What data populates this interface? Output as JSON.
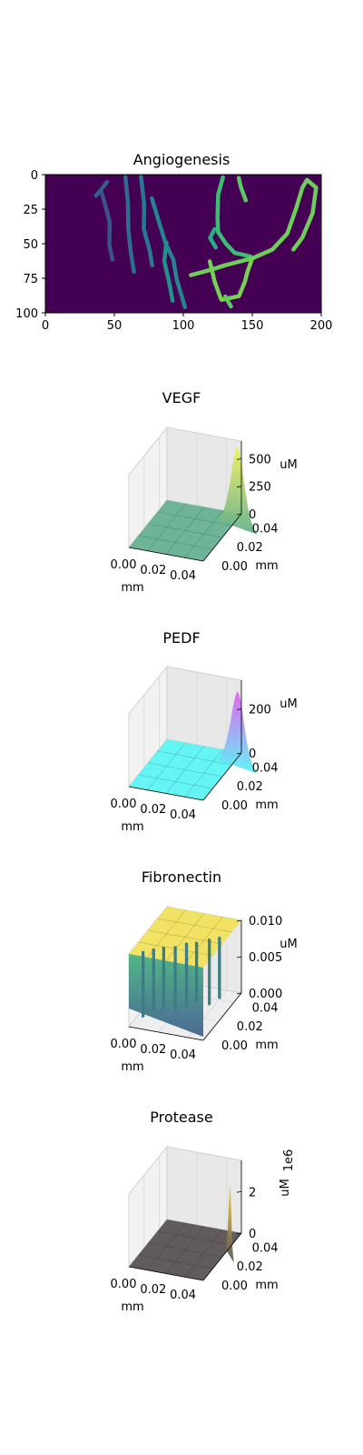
{
  "chart_data": [
    {
      "type": "heatmap",
      "title": "Angiogenesis",
      "xlim": [
        0,
        200
      ],
      "ylim": [
        100,
        0
      ],
      "xticks": [
        "0",
        "50",
        "100",
        "150",
        "200"
      ],
      "yticks": [
        "0",
        "25",
        "50",
        "75",
        "100"
      ],
      "colormap": "viridis",
      "background_color": "#440154",
      "sprouts": [
        {
          "color": "#3b528b",
          "points": [
            [
              40,
              12
            ],
            [
              44,
              22
            ],
            [
              46,
              35
            ],
            [
              47,
              50
            ],
            [
              48,
              62
            ]
          ]
        },
        {
          "color": "#35608d",
          "points": [
            [
              44,
              5
            ],
            [
              40,
              12
            ],
            [
              36,
              16
            ]
          ]
        },
        {
          "color": "#2f6c8e",
          "points": [
            [
              58,
              2
            ],
            [
              60,
              20
            ],
            [
              60,
              40
            ],
            [
              62,
              55
            ],
            [
              64,
              70
            ]
          ]
        },
        {
          "color": "#2a788e",
          "points": [
            [
              70,
              2
            ],
            [
              71,
              20
            ],
            [
              72,
              40
            ],
            [
              75,
              55
            ],
            [
              78,
              65
            ]
          ]
        },
        {
          "color": "#25848e",
          "points": [
            [
              78,
              18
            ],
            [
              82,
              35
            ],
            [
              88,
              50
            ],
            [
              92,
              62
            ],
            [
              96,
              75
            ],
            [
              98,
              88
            ],
            [
              102,
              96
            ]
          ]
        },
        {
          "color": "#21918c",
          "points": [
            [
              88,
              50
            ],
            [
              86,
              62
            ],
            [
              90,
              78
            ],
            [
              92,
              92
            ]
          ]
        },
        {
          "color": "#27ad81",
          "points": [
            [
              122,
              40
            ],
            [
              120,
              46
            ],
            [
              123,
              52
            ]
          ]
        },
        {
          "color": "#3dbc74",
          "points": [
            [
              128,
              2
            ],
            [
              126,
              15
            ],
            [
              124,
              30
            ],
            [
              126,
              42
            ],
            [
              130,
              50
            ],
            [
              138,
              56
            ],
            [
              148,
              60
            ]
          ]
        },
        {
          "color": "#5ec962",
          "points": [
            [
              140,
              2
            ],
            [
              142,
              10
            ],
            [
              145,
              18
            ]
          ]
        },
        {
          "color": "#6ece58",
          "points": [
            [
              106,
              72
            ],
            [
              118,
              70
            ],
            [
              132,
              65
            ],
            [
              150,
              60
            ],
            [
              165,
              55
            ],
            [
              175,
              42
            ],
            [
              182,
              25
            ],
            [
              186,
              10
            ],
            [
              190,
              3
            ],
            [
              196,
              10
            ],
            [
              194,
              28
            ],
            [
              186,
              45
            ],
            [
              180,
              55
            ]
          ]
        },
        {
          "color": "#73d056",
          "points": [
            [
              120,
              62
            ],
            [
              122,
              78
            ],
            [
              128,
              90
            ]
          ]
        },
        {
          "color": "#7ad151",
          "points": [
            [
              128,
              90
            ],
            [
              140,
              88
            ],
            [
              145,
              78
            ],
            [
              146,
              70
            ],
            [
              150,
              62
            ]
          ]
        },
        {
          "color": "#5ec962",
          "points": [
            [
              130,
              88
            ],
            [
              135,
              95
            ]
          ]
        }
      ]
    },
    {
      "type": "surface",
      "title": "VEGF",
      "xticks": [
        "0.00",
        "0.02",
        "0.04"
      ],
      "yticks": [
        "0.00",
        "0.02",
        "0.04"
      ],
      "zticks": [
        "0",
        "250",
        "500"
      ],
      "xlabel": "mm",
      "ylabel": "mm",
      "zlabel": "uM",
      "zlim": [
        0,
        660
      ],
      "base_level": 0,
      "peak": {
        "value": 650,
        "x": 0.05,
        "y": 0.045
      },
      "base_color": "#5fae8d",
      "peak_color": "#f0f05a"
    },
    {
      "type": "surface",
      "title": "PEDF",
      "xticks": [
        "0.00",
        "0.02",
        "0.04"
      ],
      "yticks": [
        "0.00",
        "0.02",
        "0.04"
      ],
      "zticks": [
        "0",
        "200"
      ],
      "xlabel": "mm",
      "ylabel": "mm",
      "zlabel": "uM",
      "zlim": [
        0,
        330
      ],
      "base_level": 0,
      "peak": {
        "value": 300,
        "x": 0.05,
        "y": 0.045
      },
      "base_color": "#55f5f5",
      "peak_color": "#e05cf0"
    },
    {
      "type": "surface",
      "title": "Fibronectin",
      "xticks": [
        "0.00",
        "0.02",
        "0.04"
      ],
      "yticks": [
        "0.00",
        "0.02",
        "0.04"
      ],
      "zticks": [
        "0.000",
        "0.005",
        "0.010"
      ],
      "xlabel": "mm",
      "ylabel": "mm",
      "zlabel": "uM",
      "zlim": [
        0,
        0.01
      ],
      "base_level": 0.01,
      "base_color": "#f2e155",
      "trough_color": "#3a5a8c"
    },
    {
      "type": "surface",
      "title": "Protease",
      "xticks": [
        "0.00",
        "0.02",
        "0.04"
      ],
      "yticks": [
        "0.00",
        "0.02",
        "0.04"
      ],
      "zticks": [
        "0",
        "2"
      ],
      "xlabel": "mm",
      "ylabel": "mm",
      "zlabel": "uM",
      "zoffset": "1e6",
      "zlim": [
        0,
        3.5
      ],
      "base_level": 0,
      "peak": {
        "value": 3.0,
        "x": 0.05,
        "y": 0.035
      },
      "base_color": "#5a5252",
      "peak_color": "#f0d040"
    }
  ]
}
